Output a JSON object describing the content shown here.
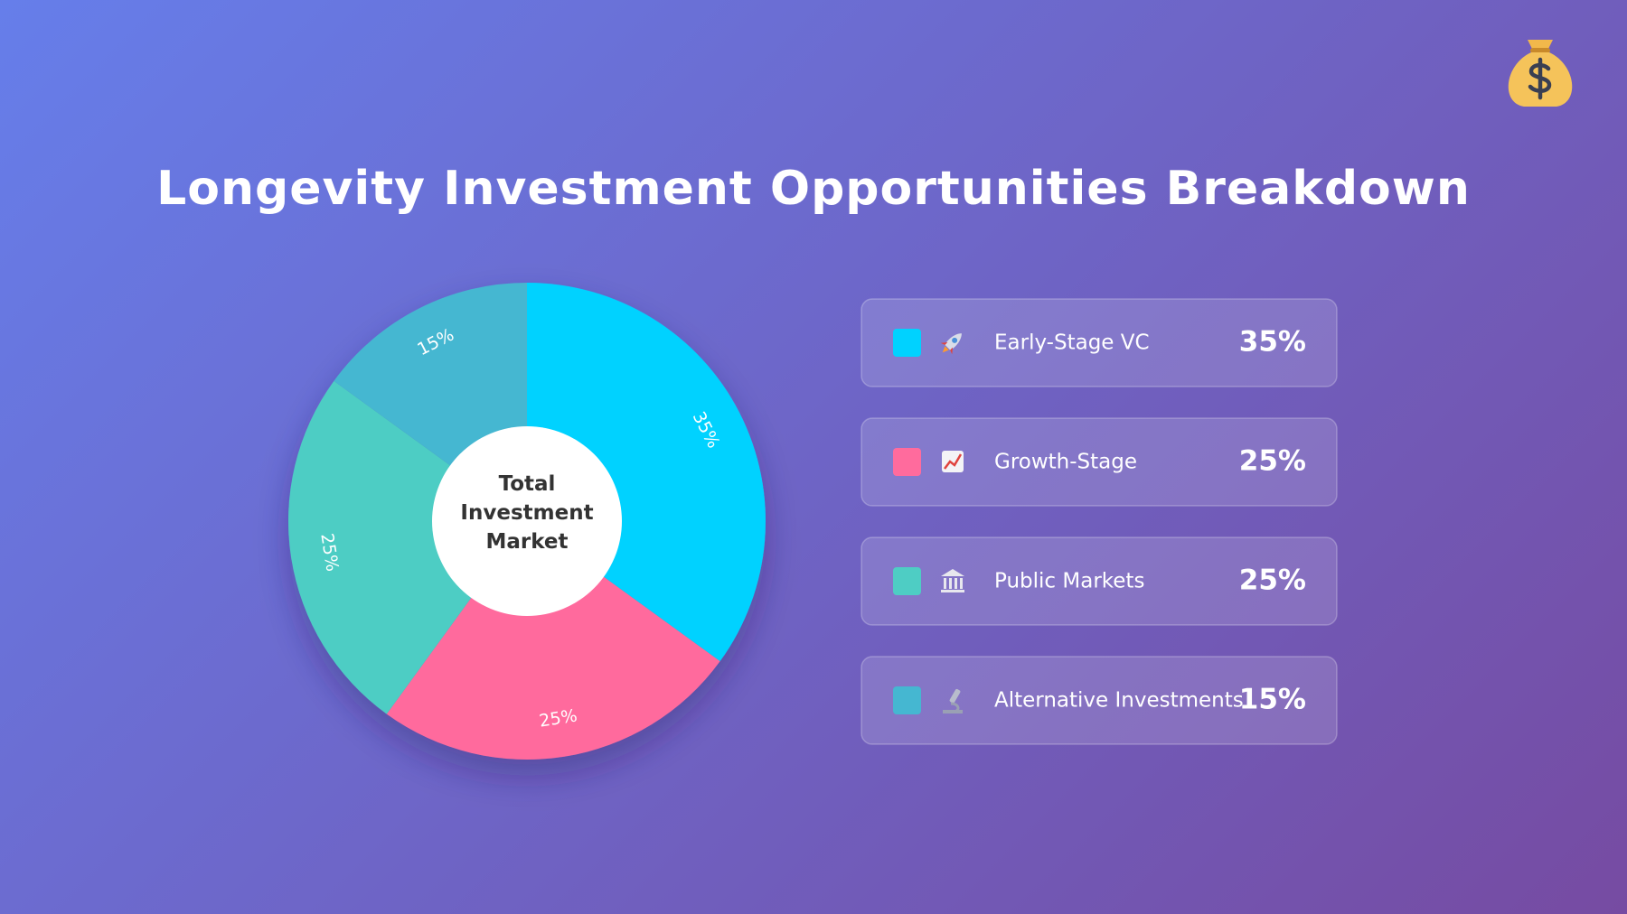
{
  "chart_data": {
    "type": "pie",
    "title": "Longevity Investment Opportunities Breakdown",
    "center_label": "Total Investment Market",
    "categories": [
      "Early-Stage VC",
      "Growth-Stage",
      "Public Markets",
      "Alternative Investments"
    ],
    "values": [
      35,
      25,
      25,
      15
    ],
    "value_labels": [
      "35%",
      "25%",
      "25%",
      "15%"
    ],
    "colors": [
      "#00d2ff",
      "#ff6b9d",
      "#4ecdc4",
      "#45b7d1"
    ]
  }
}
